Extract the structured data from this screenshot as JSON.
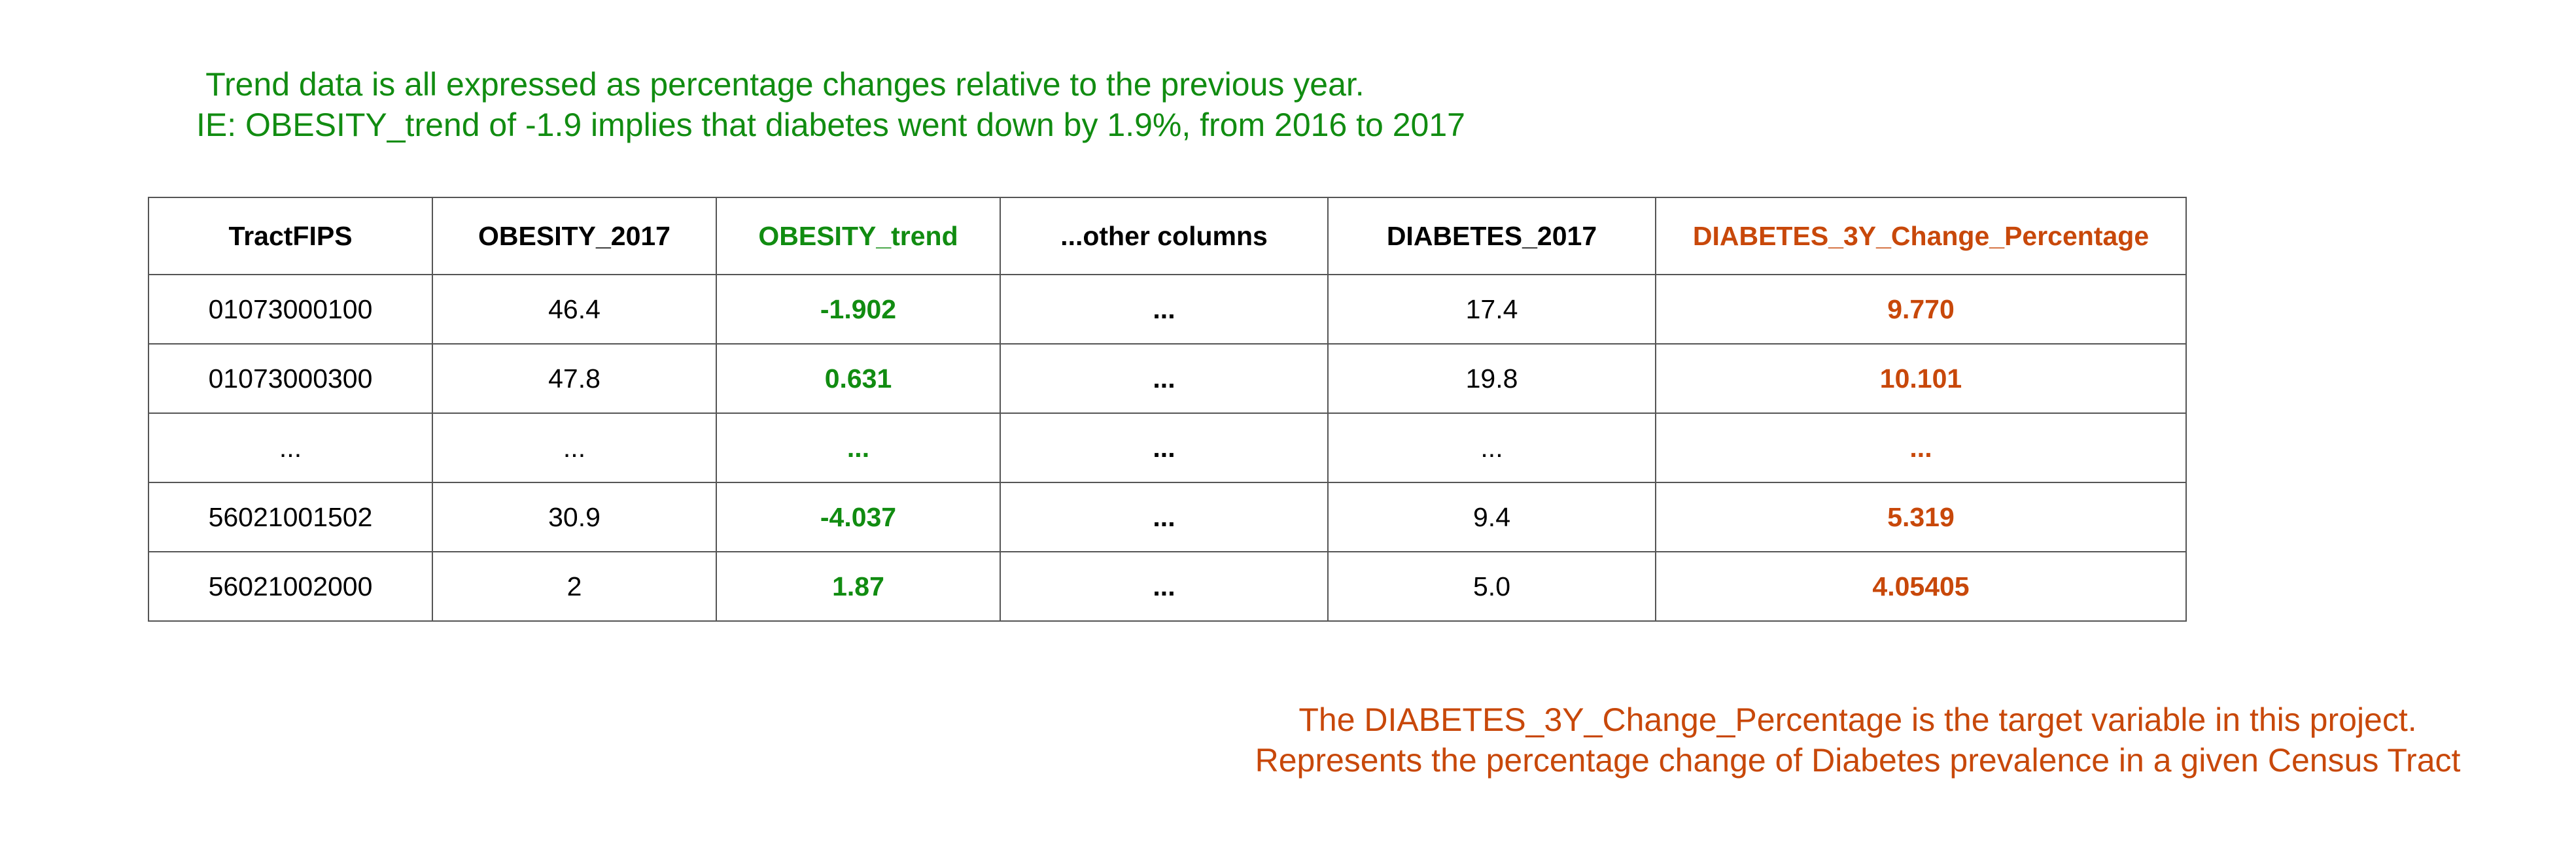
{
  "top_note": {
    "line1": "Trend data is all  expressed as percentage changes relative to the previous year.",
    "line2": "IE: OBESITY_trend of -1.9 implies that diabetes went down by 1.9%, from 2016 to 2017"
  },
  "table": {
    "headers": [
      "TractFIPS",
      "OBESITY_2017",
      "OBESITY_trend",
      "...other columns",
      "DIABETES_2017",
      "DIABETES_3Y_Change_Percentage"
    ],
    "rows": [
      [
        "01073000100",
        "46.4",
        "-1.902",
        "...",
        "17.4",
        "9.770"
      ],
      [
        "01073000300",
        "47.8",
        "0.631",
        "...",
        "19.8",
        "10.101"
      ],
      [
        "...",
        "...",
        "...",
        "...",
        "...",
        "..."
      ],
      [
        "56021001502",
        "30.9",
        "-4.037",
        "...",
        "9.4",
        "5.319"
      ],
      [
        "56021002000",
        "2",
        "1.87",
        "...",
        "5.0",
        "4.05405"
      ]
    ]
  },
  "bottom_note": {
    "line1": "The DIABETES_3Y_Change_Percentage is the target variable in this project.",
    "line2": "Represents the percentage change of Diabetes prevalence in a given Census Tract"
  },
  "colors": {
    "trend_green": "#118c11",
    "target_orange": "#c8480a"
  }
}
